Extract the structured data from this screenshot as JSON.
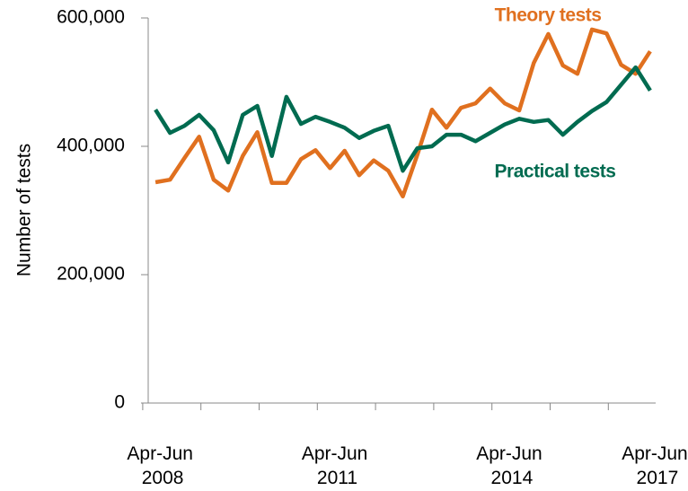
{
  "chart_data": {
    "type": "line",
    "y_label": "Number of tests",
    "categories": [
      "Apr-Jun 2008",
      null,
      null,
      null,
      null,
      null,
      null,
      null,
      null,
      null,
      null,
      null,
      "Apr-Jun 2011",
      null,
      null,
      null,
      null,
      null,
      null,
      null,
      null,
      null,
      null,
      null,
      "Apr-Jun 2014",
      null,
      null,
      null,
      null,
      null,
      null,
      null,
      null,
      null,
      "Apr-Jun 2017"
    ],
    "series": [
      {
        "name": "Theory tests",
        "color": "#e0701f",
        "values": [
          344000,
          348000,
          382000,
          415000,
          348000,
          331000,
          385000,
          422000,
          343000,
          343000,
          380000,
          394000,
          366000,
          393000,
          355000,
          378000,
          362000,
          322000,
          387000,
          457000,
          429000,
          460000,
          467000,
          490000,
          467000,
          456000,
          530000,
          575000,
          526000,
          513000,
          582000,
          576000,
          527000,
          513000,
          548000
        ]
      },
      {
        "name": "Practical tests",
        "color": "#006b50",
        "values": [
          457000,
          421000,
          432000,
          449000,
          425000,
          375000,
          449000,
          463000,
          385000,
          477000,
          435000,
          446000,
          438000,
          429000,
          413000,
          424000,
          432000,
          362000,
          397000,
          400000,
          418000,
          418000,
          408000,
          421000,
          434000,
          443000,
          438000,
          441000,
          418000,
          438000,
          455000,
          469000,
          496000,
          523000,
          487000
        ]
      }
    ],
    "ylim": [
      0,
      600000
    ],
    "yticks": [
      {
        "value": 0,
        "label": "0"
      },
      {
        "value": 200000,
        "label": "200,000"
      },
      {
        "value": 400000,
        "label": "400,000"
      },
      {
        "value": 600000,
        "label": "600,000"
      }
    ]
  }
}
